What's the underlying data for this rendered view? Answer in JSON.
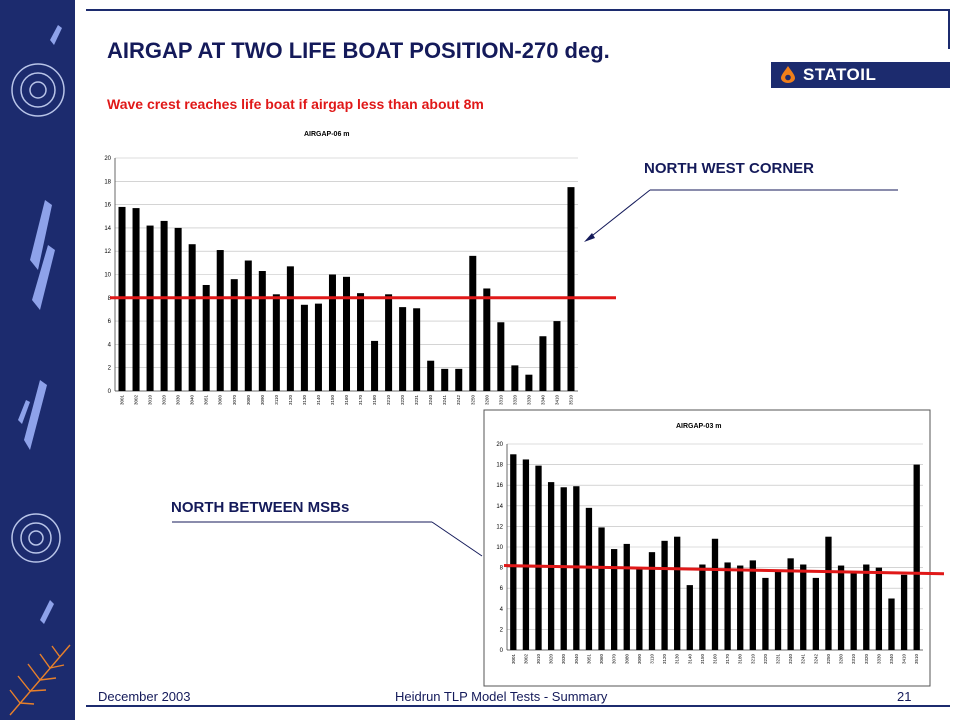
{
  "slide": {
    "title": "AIRGAP AT TWO LIFE BOAT POSITION-270 deg.",
    "subtitle": "Wave crest reaches life boat if airgap less than about 8m",
    "logo_text": "STATOIL",
    "label_nw": "NORTH WEST CORNER",
    "label_msb": "NORTH BETWEEN MSBs",
    "footer_left": "December 2003",
    "footer_center": "Heidrun TLP Model Tests - Summary",
    "footer_right": "21"
  },
  "colors": {
    "navy": "#1c2b6e",
    "red": "#e01818",
    "logo_orange": "#f07f1a"
  },
  "chart_data": [
    {
      "type": "bar",
      "title": "AIRGAP-06",
      "unit": "m",
      "categories": [
        "3001",
        "3002",
        "3010",
        "3020",
        "3030",
        "3040",
        "3051",
        "3060",
        "3070",
        "3080",
        "3090",
        "3110",
        "3120",
        "3130",
        "3140",
        "3150",
        "3160",
        "3170",
        "3180",
        "3210",
        "3220",
        "3231",
        "3240",
        "3241",
        "3242",
        "3250",
        "3260",
        "3310",
        "3320",
        "3330",
        "3340",
        "3410",
        "3510"
      ],
      "values": [
        15.8,
        15.7,
        14.2,
        14.6,
        14.0,
        12.6,
        9.1,
        12.1,
        9.6,
        11.2,
        10.3,
        8.3,
        10.7,
        7.4,
        7.5,
        10.0,
        9.8,
        8.4,
        4.3,
        8.3,
        7.2,
        7.1,
        2.6,
        1.9,
        1.9,
        11.6,
        8.8,
        5.9,
        2.2,
        1.4,
        4.7,
        6.0,
        17.5
      ],
      "ylim": [
        0,
        20
      ],
      "yticks": [
        0,
        2,
        4,
        6,
        8,
        10,
        12,
        14,
        16,
        18,
        20
      ],
      "grid": true,
      "threshold": 8
    },
    {
      "type": "bar",
      "title": "AIRGAP-03",
      "unit": "m",
      "categories": [
        "3001",
        "3002",
        "3010",
        "3020",
        "3030",
        "3040",
        "3051",
        "3060",
        "3070",
        "3080",
        "3090",
        "3110",
        "3120",
        "3130",
        "3140",
        "3150",
        "3160",
        "3170",
        "3180",
        "3210",
        "3220",
        "3231",
        "3240",
        "3241",
        "3242",
        "3250",
        "3260",
        "3310",
        "3320",
        "3330",
        "3340",
        "3410",
        "3510"
      ],
      "values": [
        19.0,
        18.5,
        17.9,
        16.3,
        15.8,
        15.9,
        13.8,
        11.9,
        9.8,
        10.3,
        7.9,
        9.5,
        10.6,
        11.0,
        6.3,
        8.3,
        10.8,
        8.5,
        8.2,
        8.7,
        7.0,
        7.7,
        8.9,
        8.3,
        7.0,
        11.0,
        8.2,
        7.6,
        8.3,
        8.0,
        5.0,
        7.3,
        18.0
      ],
      "ylim": [
        0,
        20
      ],
      "yticks": [
        0,
        2,
        4,
        6,
        8,
        10,
        12,
        14,
        16,
        18,
        20
      ],
      "grid": true,
      "threshold_start": 8.2,
      "threshold_end": 7.4
    }
  ]
}
